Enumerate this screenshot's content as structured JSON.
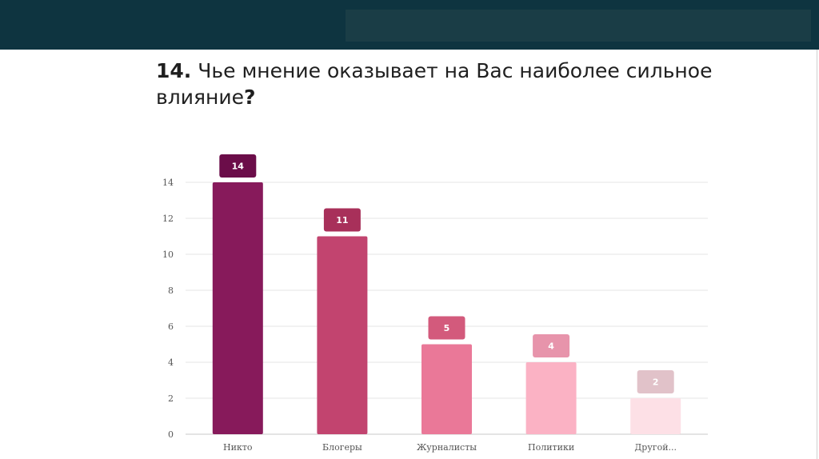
{
  "header": {
    "title_number": "14.",
    "title_text": " Чье мнение оказывает на Вас наиболее сильное влияние",
    "title_qm": "?"
  },
  "chart_data": {
    "type": "bar",
    "categories": [
      "Никто",
      "Блогеры",
      "Журналисты",
      "Политики",
      "Другой..."
    ],
    "values": [
      14,
      11,
      5,
      4,
      2
    ],
    "bar_colors": [
      "#871a5b",
      "#c2446f",
      "#ea7898",
      "#fbb2c4",
      "#fde0e6"
    ],
    "label_colors": [
      "#6b0d49",
      "#a8305a",
      "#d35a7c",
      "#e794ab",
      "#e1c2c9"
    ],
    "yticks": [
      0,
      2,
      4,
      6,
      8,
      10,
      12,
      14
    ],
    "ylim": [
      0,
      14
    ],
    "grid": true,
    "title": "14. Чье мнение оказывает на Вас наиболее сильное влияние?",
    "xlabel": "",
    "ylabel": ""
  }
}
